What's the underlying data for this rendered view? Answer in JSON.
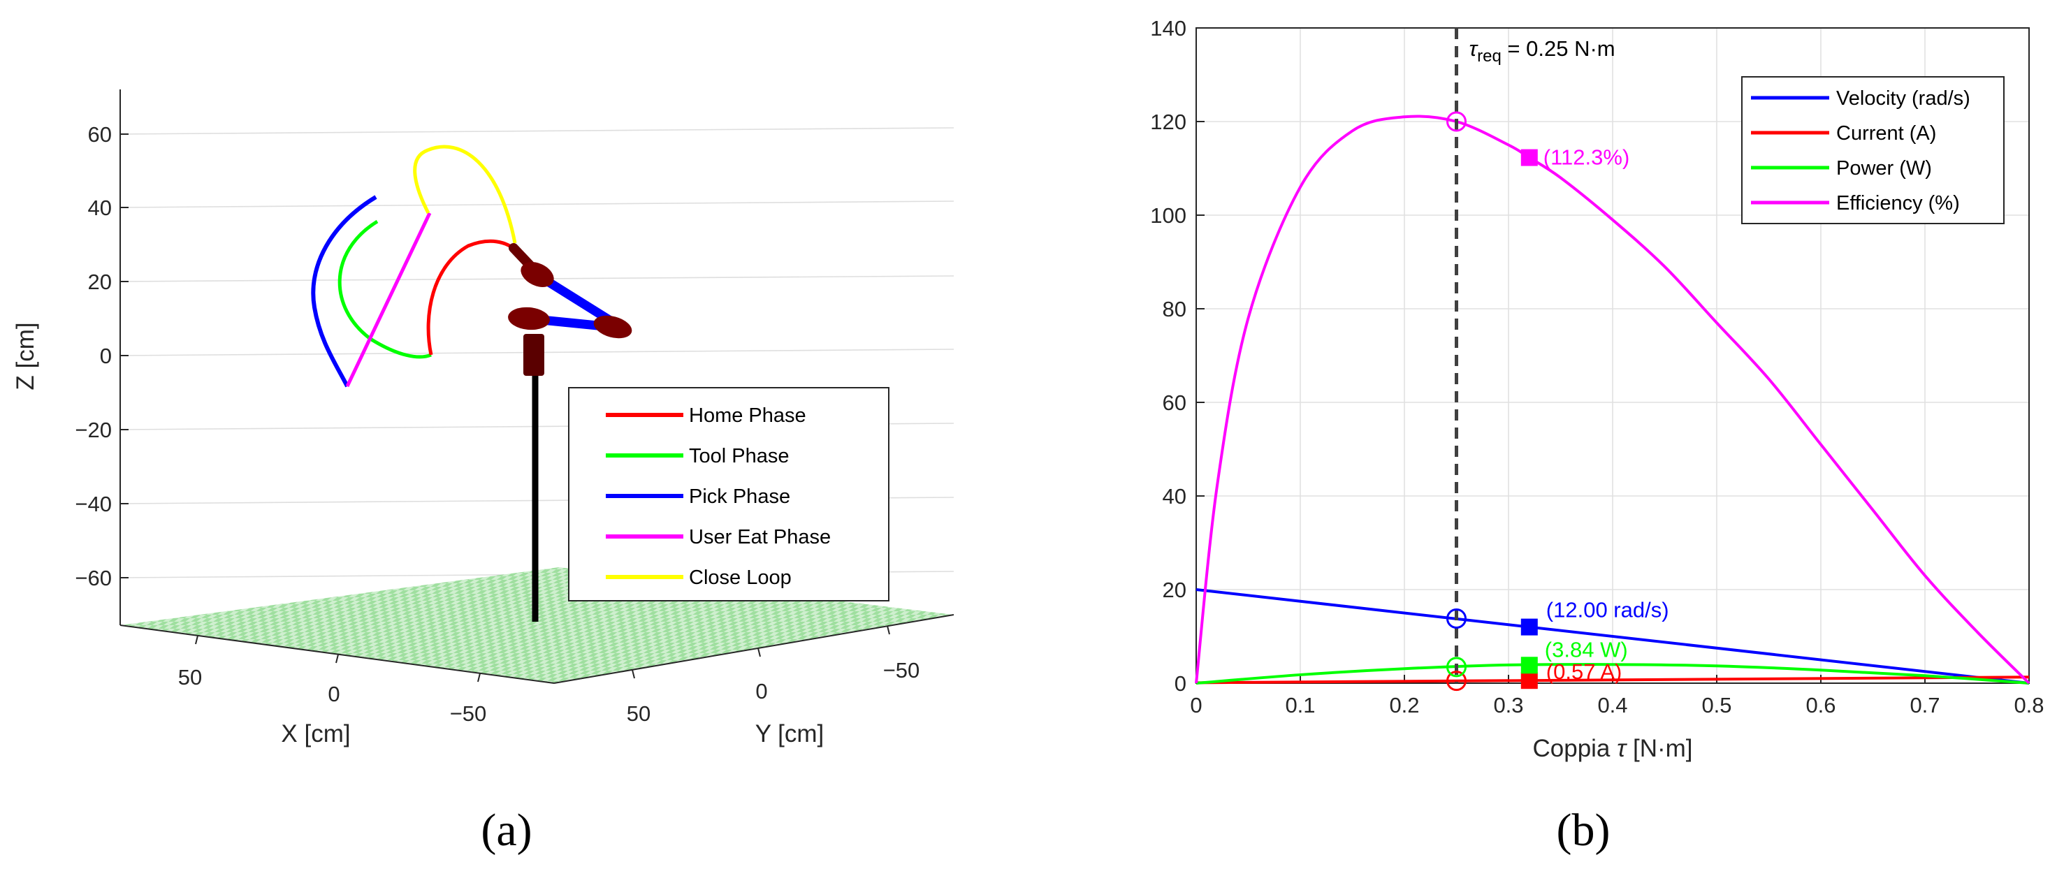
{
  "panels": [
    "(a)",
    "(b)"
  ],
  "chart_data": [
    {
      "type": "line",
      "zlabel": "Z [cm]",
      "xlabel": "X [cm]",
      "ylabel": "Y [cm]",
      "z_ticks": [
        "60",
        "40",
        "20",
        "0",
        "−20",
        "−40",
        "−60"
      ],
      "x_ticks": [
        "50",
        "0",
        "−50"
      ],
      "y_ticks": [
        "50",
        "0",
        "−50"
      ],
      "legend_position": "bottom-right",
      "series": [
        {
          "name": "Home Phase",
          "color": "#ff0000"
        },
        {
          "name": "Tool Phase",
          "color": "#00ff00"
        },
        {
          "name": "Pick Phase",
          "color": "#0000ff"
        },
        {
          "name": "User Eat Phase",
          "color": "#ff00ff"
        },
        {
          "name": "Close Loop",
          "color": "#ffff00"
        }
      ]
    },
    {
      "type": "line",
      "xlabel_main": "Coppia",
      "xlabel_sym": "τ",
      "xlabel_unit": "[N·m]",
      "xlim": [
        0,
        0.8
      ],
      "ylim": [
        0,
        140
      ],
      "x_ticks": [
        0,
        0.1,
        0.2,
        0.3,
        0.4,
        0.5,
        0.6,
        0.7,
        0.8
      ],
      "y_ticks": [
        0,
        20,
        40,
        60,
        80,
        100,
        120,
        140
      ],
      "grid": true,
      "legend_position": "top-right",
      "tau_req": 0.25,
      "tau_req_label": {
        "sym": "τ",
        "sub": "req",
        "rest": " = 0.25 N·m"
      },
      "operating_point": 0.32,
      "series": [
        {
          "name": "Velocity (rad/s)",
          "color": "#0000ff",
          "x": [
            0,
            0.8
          ],
          "y": [
            20,
            0
          ],
          "req_value": 13.8,
          "op_value": 12.0,
          "label": "(12.00 rad/s)"
        },
        {
          "name": "Current (A)",
          "color": "#ff0000",
          "x": [
            0,
            0.8
          ],
          "y": [
            0.1,
            1.3
          ],
          "req_value": 0.5,
          "op_value": 0.57,
          "label": "(0.57 A)"
        },
        {
          "name": "Power (W)",
          "color": "#00ff00",
          "x": [
            0,
            0.1,
            0.2,
            0.3,
            0.4,
            0.5,
            0.6,
            0.7,
            0.8
          ],
          "y": [
            0,
            1.8,
            3.1,
            3.9,
            4.0,
            3.7,
            2.8,
            1.6,
            0
          ],
          "req_value": 3.45,
          "op_value": 3.84,
          "label": "(3.84 W)"
        },
        {
          "name": "Efficiency (%)",
          "color": "#ff00ff",
          "x": [
            0,
            0.02,
            0.05,
            0.1,
            0.15,
            0.2,
            0.25,
            0.3,
            0.32,
            0.35,
            0.4,
            0.45,
            0.5,
            0.55,
            0.6,
            0.65,
            0.7,
            0.75,
            0.8
          ],
          "y": [
            0,
            42,
            78,
            106,
            118,
            121,
            120,
            115,
            112.3,
            108,
            99,
            89,
            77,
            65,
            51,
            37,
            23,
            11,
            0
          ],
          "req_value": 120,
          "op_value": 112.3,
          "label": "(112.3%)"
        }
      ]
    }
  ]
}
